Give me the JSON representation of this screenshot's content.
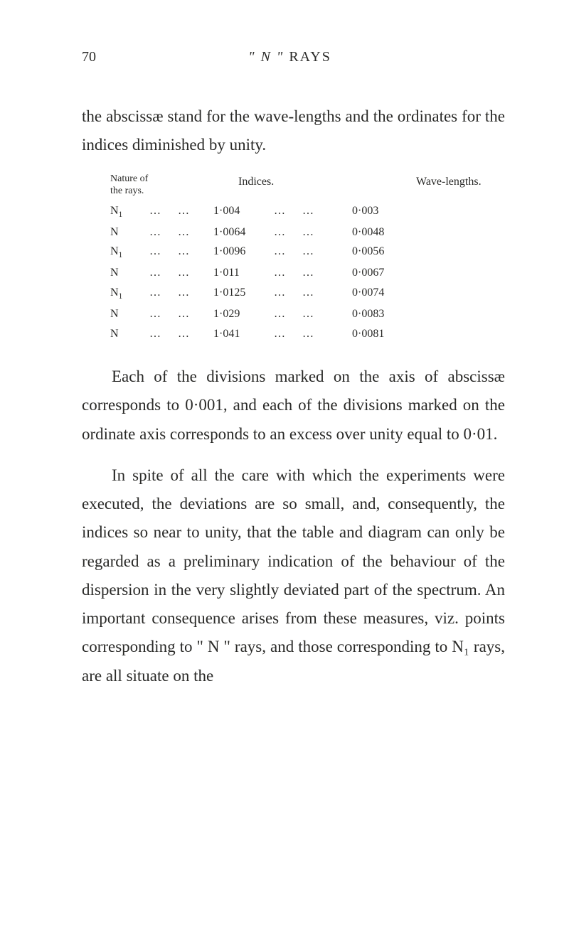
{
  "page_number": "70",
  "running_head_italic_open": "\" N \"",
  "running_head_roman": "RAYS",
  "para1": "the abscissæ stand for the wave-lengths and the ordinates for the indices diminished by unity.",
  "table": {
    "head_col1_line1": "Nature of",
    "head_col1_line2": "the rays.",
    "head_col2": "Indices.",
    "head_col3": "Wave-lengths.",
    "rows": [
      {
        "nature": "N₁",
        "index": "1·004",
        "wl": "0·003"
      },
      {
        "nature": "N",
        "index": "1·0064",
        "wl": "0·0048"
      },
      {
        "nature": "N₁",
        "index": "1·0096",
        "wl": "0·0056"
      },
      {
        "nature": "N",
        "index": "1·011",
        "wl": "0·0067"
      },
      {
        "nature": "N₁",
        "index": "1·0125",
        "wl": "0·0074"
      },
      {
        "nature": "N",
        "index": "1·029",
        "wl": "0·0083"
      },
      {
        "nature": "N",
        "index": "1·041",
        "wl": "0·0081"
      }
    ]
  },
  "para2": "Each of the divisions marked on the axis of abscissæ corresponds to 0·001, and each of the divisions marked on the ordinate axis corresponds to an excess over unity equal to 0·01.",
  "para3": "In spite of all the care with which the experiments were executed, the deviations are so small, and, consequently, the indices so near to unity, that the table and diagram can only be regarded as a preliminary indication of the behaviour of the dispersion in the very slightly deviated part of the spectrum. An important consequence arises from these measures, viz. points corresponding to \" N \" rays, and those corresponding to N₁ rays, are all situate on the",
  "dots": "…"
}
